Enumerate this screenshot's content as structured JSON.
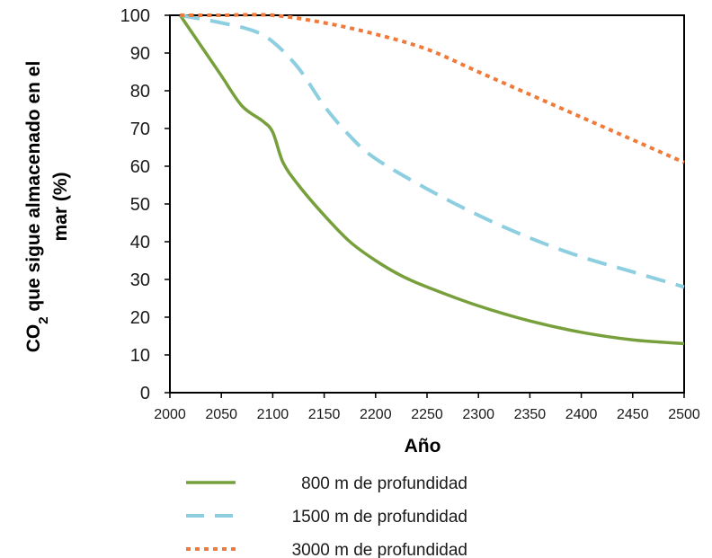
{
  "chart_data": {
    "type": "line",
    "title": "",
    "xlabel": "Año",
    "ylabel_line1": "CO",
    "ylabel_sub": "2",
    "ylabel_line1_rest": " que sigue almacenado en el",
    "ylabel_line2": "mar (%)",
    "xlim": [
      2000,
      2500
    ],
    "ylim": [
      0,
      100
    ],
    "x_ticks": [
      2000,
      2050,
      2100,
      2150,
      2200,
      2250,
      2300,
      2350,
      2400,
      2450,
      2500
    ],
    "y_ticks": [
      0,
      10,
      20,
      30,
      40,
      50,
      60,
      70,
      80,
      90,
      100
    ],
    "grid": false,
    "legend_position": "bottom",
    "series": [
      {
        "name": "800 m de profundidad",
        "color": "#77A03C",
        "style": "solid",
        "x": [
          2010,
          2030,
          2050,
          2070,
          2090,
          2100,
          2110,
          2125,
          2150,
          2175,
          2200,
          2225,
          2250,
          2300,
          2350,
          2400,
          2450,
          2500
        ],
        "y": [
          100,
          92,
          84,
          76,
          72,
          69,
          61,
          55,
          47,
          40,
          35,
          31,
          28,
          23,
          19,
          16,
          14,
          13
        ]
      },
      {
        "name": "1500 m de profundidad",
        "color": "#8DCFE0",
        "style": "dashed",
        "x": [
          2010,
          2050,
          2080,
          2100,
          2125,
          2150,
          2175,
          2200,
          2250,
          2300,
          2350,
          2400,
          2450,
          2500
        ],
        "y": [
          100,
          98,
          96,
          93,
          86,
          76,
          68,
          62,
          54,
          47,
          41,
          36,
          32,
          28
        ]
      },
      {
        "name": "3000 m de profundidad",
        "color": "#F07A3A",
        "style": "dotted",
        "x": [
          2010,
          2050,
          2100,
          2150,
          2200,
          2250,
          2300,
          2350,
          2400,
          2450,
          2500
        ],
        "y": [
          100,
          100,
          100,
          98,
          95,
          91,
          85,
          79,
          73,
          67,
          61
        ]
      }
    ]
  }
}
